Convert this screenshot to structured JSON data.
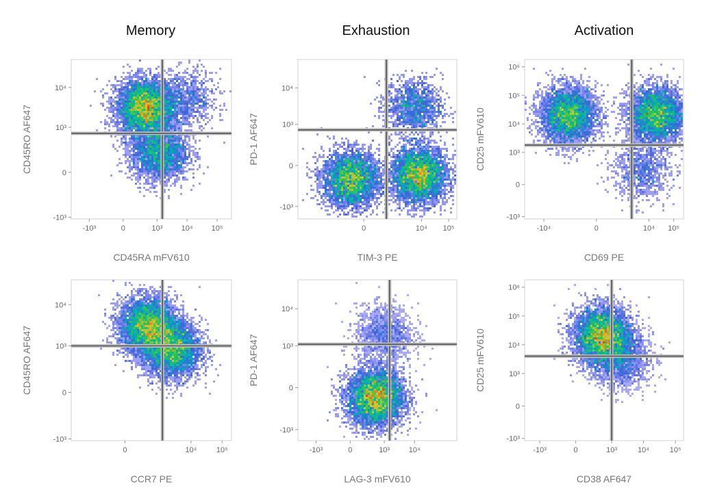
{
  "column_titles": [
    "Memory",
    "Exhaustion",
    "Activation"
  ],
  "chart_data": [
    {
      "type": "scatter",
      "title": "Memory",
      "xlabel": "CD45RA mFV610",
      "ylabel": "CD45RO AF647",
      "x_scale": "biexponential",
      "y_scale": "biexponential",
      "x_ticks": [
        "-10³",
        "0",
        "10³",
        "10⁴",
        "10⁵"
      ],
      "y_ticks": [
        "-10³",
        "0",
        "10³",
        "10⁴"
      ],
      "gate": {
        "x": 1500,
        "y": 700
      },
      "clusters": [
        {
          "x": 400,
          "y": 3000,
          "weight": 0.6
        },
        {
          "x": 1200,
          "y": 200,
          "weight": 0.3
        },
        {
          "x": 10000,
          "y": 5000,
          "weight": 0.1
        }
      ]
    },
    {
      "type": "scatter",
      "title": "Exhaustion",
      "xlabel": "TIM-3 PE",
      "ylabel": "PD-1 AF647",
      "x_scale": "biexponential",
      "y_scale": "biexponential",
      "x_ticks": [
        "0",
        "10⁴",
        "10⁵"
      ],
      "y_ticks": [
        "-10³",
        "0",
        "10³",
        "10⁴"
      ],
      "gate": {
        "x": 500,
        "y": 700
      },
      "clusters": [
        {
          "x": -200,
          "y": -150,
          "weight": 0.4
        },
        {
          "x": 8000,
          "y": -100,
          "weight": 0.45
        },
        {
          "x": 5000,
          "y": 3000,
          "weight": 0.15
        }
      ]
    },
    {
      "type": "scatter",
      "title": "Activation",
      "xlabel": "CD69 PE",
      "ylabel": "CD25 mFV610",
      "x_scale": "biexponential",
      "y_scale": "biexponential",
      "x_ticks": [
        "-10⁴",
        "0",
        "10⁴",
        "10⁵"
      ],
      "y_ticks": [
        "-10³",
        "0",
        "10³",
        "10⁴",
        "10⁵",
        "10⁶"
      ],
      "gate": {
        "x": 2000,
        "y": 1800
      },
      "clusters": [
        {
          "x": -1000,
          "y": 20000,
          "weight": 0.45
        },
        {
          "x": 20000,
          "y": 20000,
          "weight": 0.45
        },
        {
          "x": 5000,
          "y": 200,
          "weight": 0.1
        }
      ]
    },
    {
      "type": "scatter",
      "title": "Memory",
      "xlabel": "CCR7 PE",
      "ylabel": "CD45RO AF647",
      "x_scale": "biexponential",
      "y_scale": "biexponential",
      "x_ticks": [
        "0",
        "10⁴",
        "10⁵"
      ],
      "y_ticks": [
        "-10³",
        "0",
        "10³",
        "10⁴"
      ],
      "gate": {
        "x": 1200,
        "y": 1000
      },
      "clusters": [
        {
          "x": 400,
          "y": 3000,
          "weight": 0.55
        },
        {
          "x": 2500,
          "y": 800,
          "weight": 0.45
        }
      ]
    },
    {
      "type": "scatter",
      "title": "Exhaustion",
      "xlabel": "LAG-3 mFV610",
      "ylabel": "PD-1 AF647",
      "x_scale": "biexponential",
      "y_scale": "biexponential",
      "x_ticks": [
        "-10³",
        "0",
        "10³",
        "10⁴"
      ],
      "y_ticks": [
        "-10³",
        "0",
        "10³",
        "10⁴"
      ],
      "gate": {
        "x": 1500,
        "y": 1100
      },
      "clusters": [
        {
          "x": 500,
          "y": -100,
          "weight": 0.85
        },
        {
          "x": 1000,
          "y": 2000,
          "weight": 0.15
        }
      ]
    },
    {
      "type": "scatter",
      "title": "Activation",
      "xlabel": "CD38 AF647",
      "ylabel": "CD25 mFV610",
      "x_scale": "biexponential",
      "y_scale": "biexponential",
      "x_ticks": [
        "-10³",
        "0",
        "10³",
        "10⁴",
        "10⁵"
      ],
      "y_ticks": [
        "-10³",
        "0",
        "10³",
        "10⁴",
        "10⁵",
        "10⁶"
      ],
      "gate": {
        "x": 1000,
        "y": 4000
      },
      "clusters": [
        {
          "x": 500,
          "y": 20000,
          "weight": 0.8
        },
        {
          "x": 2000,
          "y": 3000,
          "weight": 0.2
        }
      ]
    }
  ]
}
